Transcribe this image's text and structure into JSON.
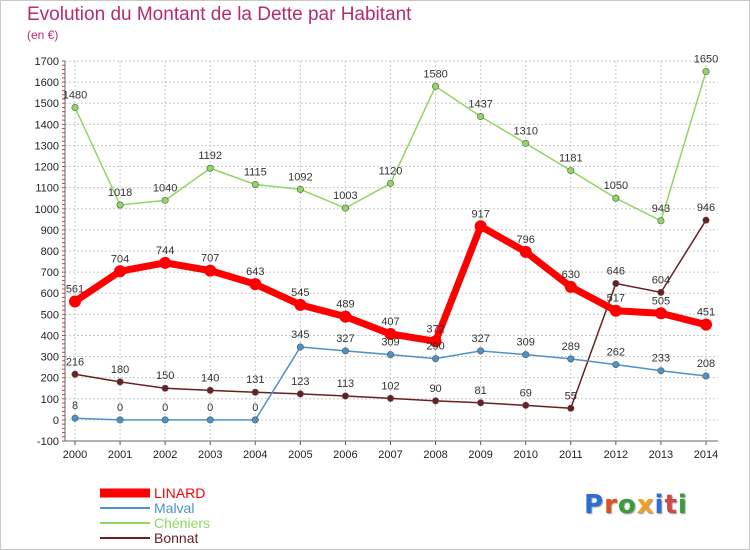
{
  "chart_data": {
    "type": "line",
    "title": "Evolution du Montant de la Dette par Habitant",
    "subtitle": "(en €)",
    "categories": [
      "2000",
      "2001",
      "2002",
      "2003",
      "2004",
      "2005",
      "2006",
      "2007",
      "2008",
      "2009",
      "2010",
      "2011",
      "2012",
      "2013",
      "2014"
    ],
    "ylim": [
      -100,
      1700
    ],
    "yticks": [
      -100,
      0,
      100,
      200,
      300,
      400,
      500,
      600,
      700,
      800,
      900,
      1000,
      1100,
      1200,
      1300,
      1400,
      1500,
      1600,
      1700
    ],
    "grid": true,
    "legend_position": "bottom-left",
    "series": [
      {
        "name": "LINARD",
        "color": "#ff0000",
        "values": [
          561,
          704,
          744,
          707,
          643,
          545,
          489,
          407,
          372,
          917,
          796,
          630,
          517,
          505,
          451
        ]
      },
      {
        "name": "Malval",
        "color": "#4f92c9",
        "values": [
          8,
          0,
          0,
          0,
          0,
          345,
          327,
          309,
          290,
          327,
          309,
          289,
          262,
          233,
          208
        ]
      },
      {
        "name": "Chéniers",
        "color": "#8fd860",
        "values": [
          1480,
          1018,
          1040,
          1192,
          1115,
          1092,
          1003,
          1120,
          1580,
          1437,
          1310,
          1181,
          1050,
          943,
          1650
        ]
      },
      {
        "name": "Bonnat",
        "color": "#6b1f22",
        "values": [
          216,
          180,
          150,
          140,
          131,
          123,
          113,
          102,
          90,
          81,
          69,
          55,
          646,
          604,
          946
        ]
      }
    ],
    "logo": "Proxiti"
  }
}
